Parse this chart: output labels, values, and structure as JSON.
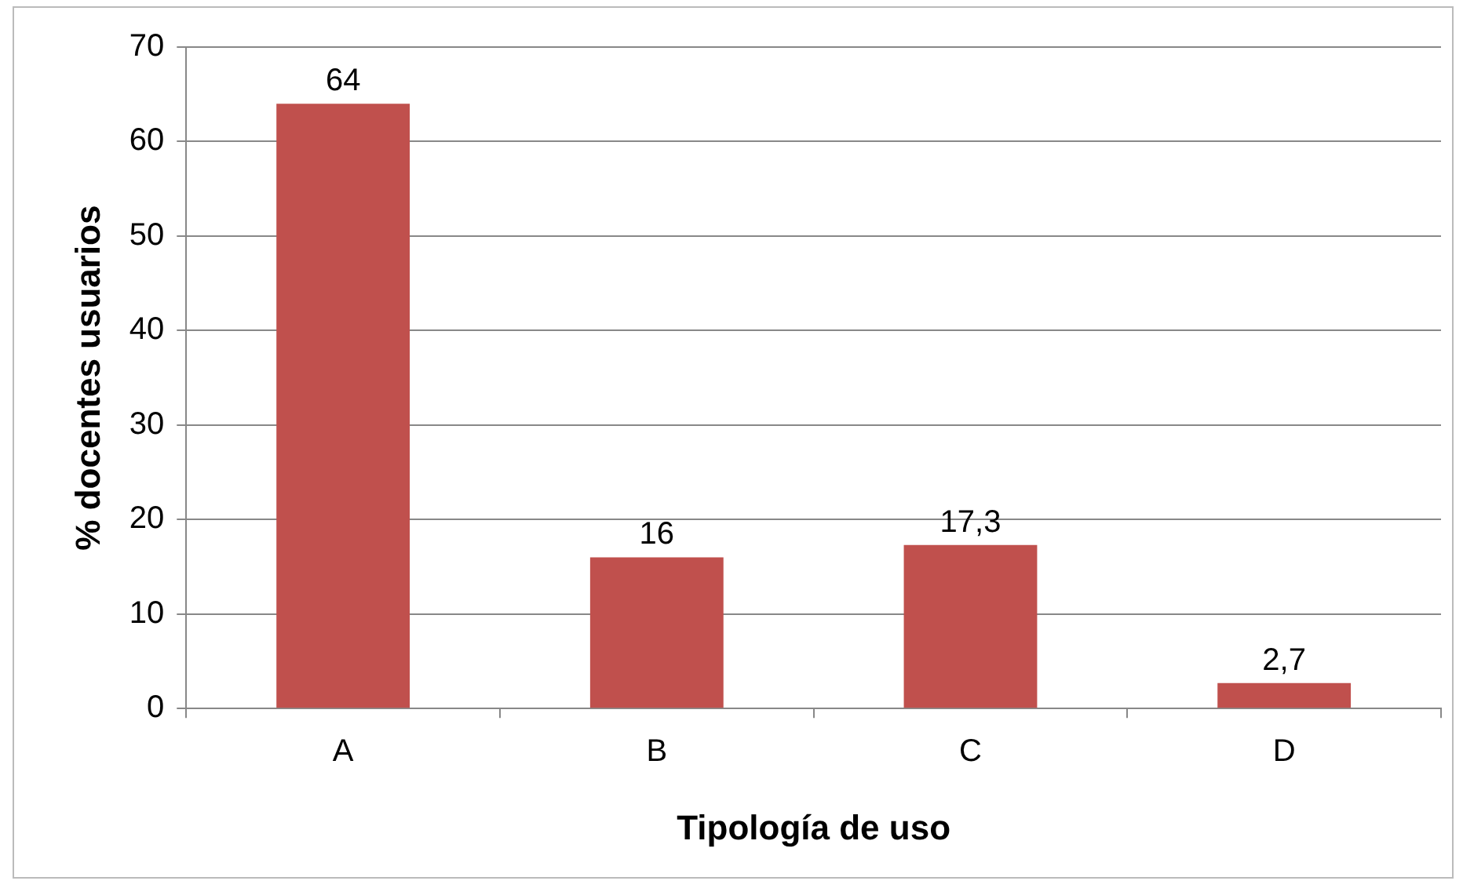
{
  "chart_data": {
    "type": "bar",
    "xlabel": "Tipología de uso",
    "ylabel": "% docentes usuarios",
    "categories": [
      "A",
      "B",
      "C",
      "D"
    ],
    "values": [
      64,
      16,
      17.3,
      2.7
    ],
    "value_labels": [
      "64",
      "16",
      "17,3",
      "2,7"
    ],
    "color": "#c0504d",
    "ylim": [
      0,
      70
    ],
    "yticks": [
      0,
      10,
      20,
      30,
      40,
      50,
      60,
      70
    ],
    "grid": "y",
    "legend": false
  }
}
